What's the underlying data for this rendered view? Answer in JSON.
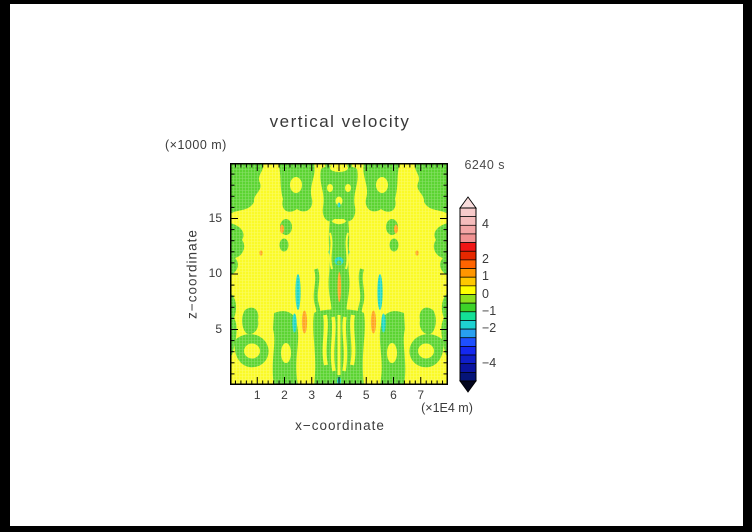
{
  "title": "vertical velocity",
  "time_label": "6240 s",
  "y_unit_label": "(×1000 m)",
  "x_unit_label": "(×1E4 m)",
  "xlabel": "x−coordinate",
  "ylabel": "z−coordinate",
  "palette": {
    "yellow": "#FAFA28",
    "green": "#5CD431",
    "cyan": "#1FD7C4",
    "orange": "#FFA51E",
    "frame": "#000000"
  },
  "chart_data": {
    "type": "heatmap",
    "title": "vertical velocity",
    "subtitle_time": "6240 s",
    "xlabel": "x−coordinate",
    "ylabel": "z−coordinate",
    "x_units": "×1E4 m",
    "y_units": "×1000 m",
    "xlim": [
      0,
      8
    ],
    "ylim": [
      0,
      20
    ],
    "x_ticks": [
      1,
      2,
      3,
      4,
      5,
      6,
      7
    ],
    "y_ticks": [
      5,
      10,
      15
    ],
    "x_minor_step": 0.2,
    "y_minor_step": 1,
    "grid": "fine dotted model mesh over filled contours",
    "legend_position": "colorbar right",
    "colorbar": {
      "min": -5,
      "max": 5,
      "step": 0.5,
      "tick_values": [
        4,
        2,
        1,
        0,
        -1,
        -2,
        -4
      ],
      "tick_labels": [
        "4",
        "2",
        "1",
        "0",
        "−1",
        "−2",
        "−4"
      ],
      "segment_colors_top_to_bottom": [
        "#F7CACA",
        "#F5BCBC",
        "#F3A6A6",
        "#F09292",
        "#F01616",
        "#E62800",
        "#FF6400",
        "#FF9600",
        "#FFC800",
        "#FFFF00",
        "#8CE01E",
        "#3CD228",
        "#14E096",
        "#1ED2D2",
        "#28A0F0",
        "#1E50FF",
        "#1428F0",
        "#0F1EC8",
        "#0A14A0",
        "#051478"
      ],
      "over_color": "#F9DCDC",
      "under_color": "#02051E"
    },
    "field_summary": {
      "background": "weak vertical velocity field, symmetric about x=4: yellow ≈ 0 to +0.5, green blobs ≈ −0.5 to 0",
      "features": [
        {
          "kind": "downdraft-streak",
          "color": "cyan",
          "x": 2.5,
          "z_range": [
            6.8,
            9.9
          ]
        },
        {
          "kind": "downdraft-streak",
          "color": "cyan",
          "x": 2.37,
          "z_range": [
            4.7,
            6.4
          ]
        },
        {
          "kind": "updraft-streak",
          "color": "orange",
          "x": 2.73,
          "z_range": [
            4.7,
            6.6
          ]
        },
        {
          "kind": "downdraft-streak",
          "color": "cyan",
          "x": 5.5,
          "z_range": [
            6.8,
            9.9
          ]
        },
        {
          "kind": "downdraft-streak",
          "color": "cyan",
          "x": 5.63,
          "z_range": [
            4.7,
            6.4
          ]
        },
        {
          "kind": "updraft-streak",
          "color": "orange",
          "x": 5.27,
          "z_range": [
            4.7,
            6.6
          ]
        },
        {
          "kind": "updraft-spot",
          "color": "orange",
          "x": 1.95,
          "z": 14.1
        },
        {
          "kind": "updraft-spot",
          "color": "orange",
          "x": 6.05,
          "z": 14.1
        },
        {
          "kind": "updraft-spot",
          "color": "orange",
          "x": 1.15,
          "z": 11.9
        },
        {
          "kind": "updraft-spot",
          "color": "orange",
          "x": 6.85,
          "z": 11.9
        },
        {
          "kind": "updraft-thread",
          "color": "orange",
          "x": 4.0,
          "z_range": [
            7.5,
            10.2
          ]
        },
        {
          "kind": "downdraft-spot",
          "color": "cyan",
          "x": 3.7,
          "z": 12.0
        },
        {
          "kind": "downdraft-spot",
          "color": "cyan",
          "x": 4.3,
          "z": 12.0
        },
        {
          "kind": "downdraft-ring",
          "color": "cyan",
          "x": 4.0,
          "z": 11.2
        },
        {
          "kind": "downdraft-spot",
          "color": "cyan",
          "x": 4.0,
          "z": 16.2
        },
        {
          "kind": "downdraft-spot",
          "color": "cyan",
          "x": 4.0,
          "z": 0.4
        }
      ]
    }
  }
}
